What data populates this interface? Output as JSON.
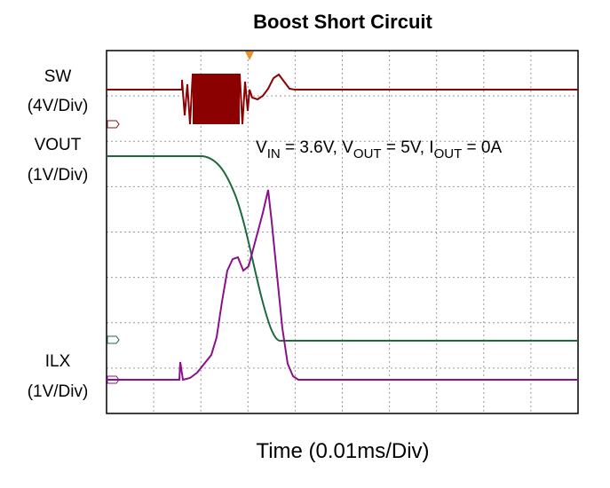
{
  "title": "Boost Short Circuit",
  "channels": [
    {
      "name": "SW",
      "scale": "(4V/Div)"
    },
    {
      "name": "VOUT",
      "scale": "(1V/Div)"
    },
    {
      "name": "ILX",
      "scale": "(1V/Div)"
    }
  ],
  "annotation": [
    "V",
    "IN",
    " = 3.6V, V",
    "OUT",
    " = 5V, I",
    "OUT",
    " = 0A"
  ],
  "x_label": "Time (0.01ms/Div)"
}
